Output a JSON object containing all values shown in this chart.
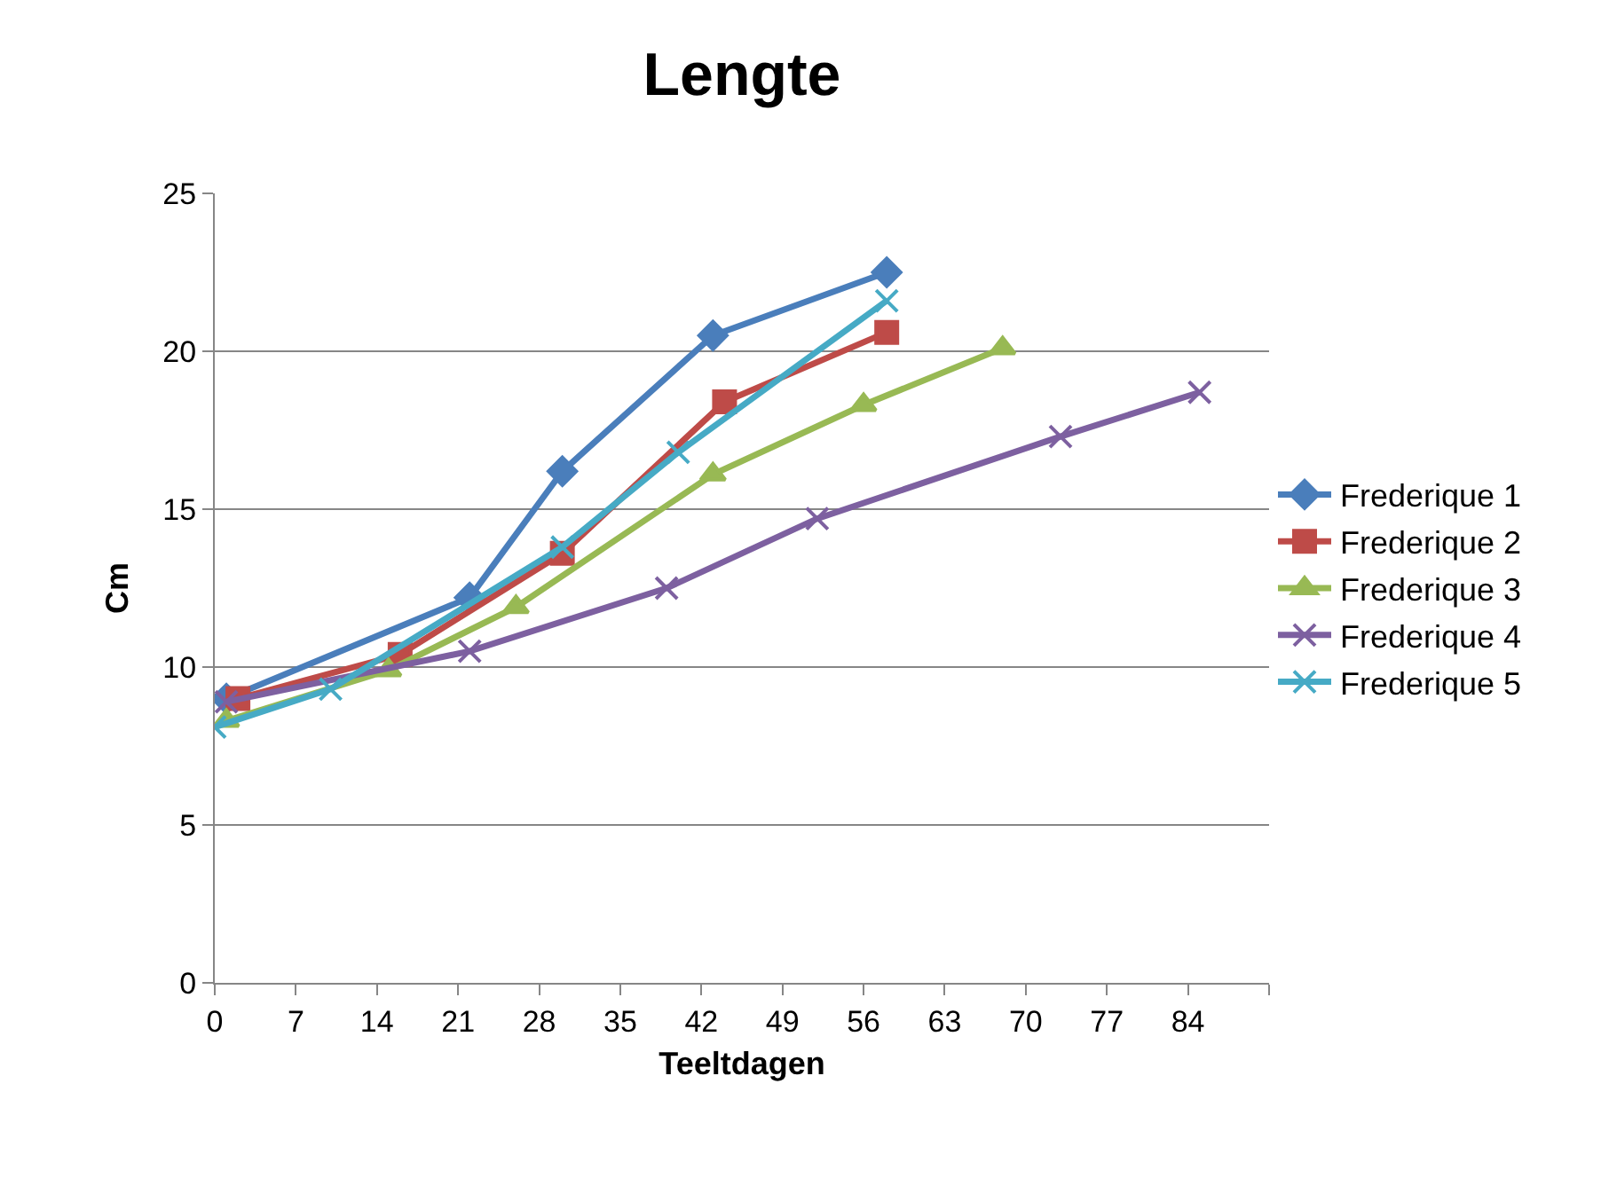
{
  "chart_data": {
    "type": "line",
    "title": "Lengte",
    "xlabel": "Teeltdagen",
    "ylabel": "Cm",
    "xlim": [
      0,
      91
    ],
    "xticks": [
      0,
      7,
      14,
      21,
      28,
      35,
      42,
      49,
      56,
      63,
      70,
      77,
      84,
      {
        "value": 91,
        "label": null
      }
    ],
    "ylim": [
      0,
      25
    ],
    "yticks": [
      0,
      5,
      10,
      15,
      20,
      25
    ],
    "grid": "y",
    "legend": "right",
    "line_style": "solid",
    "series": [
      {
        "name": "Frederique 1",
        "color": "#4a7ebb",
        "marker": "diamond",
        "x": [
          1,
          22,
          30,
          43,
          58
        ],
        "values": [
          9.0,
          12.2,
          16.2,
          20.5,
          22.5
        ]
      },
      {
        "name": "Frederique 2",
        "color": "#be4b48",
        "marker": "square",
        "x": [
          2,
          16,
          30,
          44,
          58
        ],
        "values": [
          9.0,
          10.4,
          13.6,
          18.4,
          20.6
        ]
      },
      {
        "name": "Frederique 3",
        "color": "#98b954",
        "marker": "triangle",
        "x": [
          1,
          15,
          26,
          43,
          56,
          68
        ],
        "values": [
          8.3,
          9.9,
          11.9,
          16.1,
          18.3,
          20.1
        ]
      },
      {
        "name": "Frederique 4",
        "color": "#7d60a0",
        "marker": "cross",
        "x": [
          1,
          22,
          39,
          52,
          73,
          85
        ],
        "values": [
          8.9,
          10.5,
          12.5,
          14.7,
          17.3,
          18.7
        ]
      },
      {
        "name": "Frederique 5",
        "color": "#46aac5",
        "marker": "cross",
        "x": [
          0,
          10,
          30,
          40,
          58
        ],
        "values": [
          8.1,
          9.3,
          13.8,
          16.8,
          21.6
        ]
      }
    ]
  }
}
